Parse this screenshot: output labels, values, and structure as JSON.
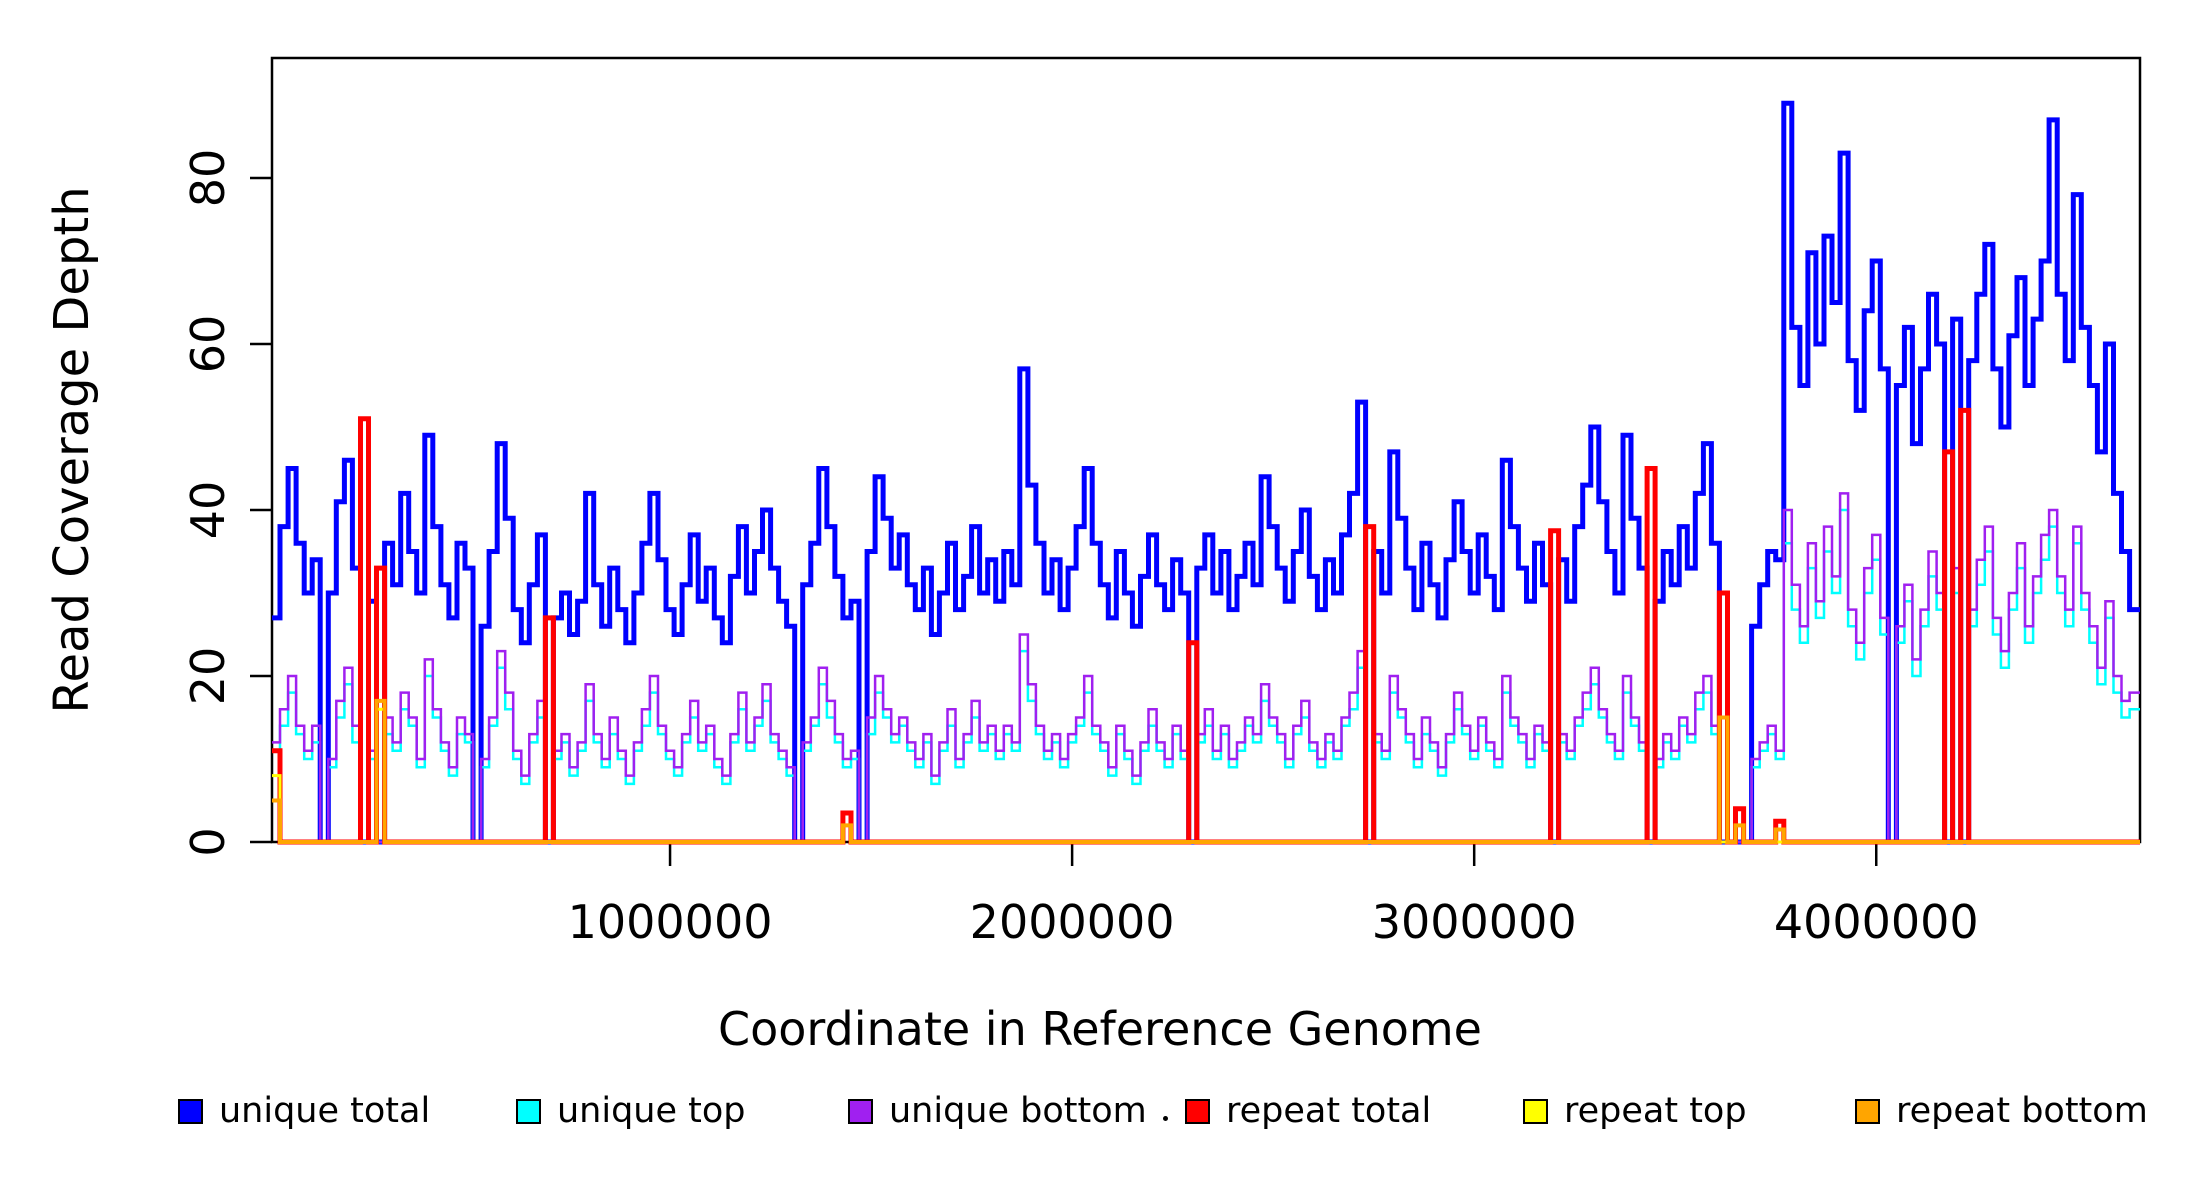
{
  "chart_data": {
    "type": "line",
    "subtype": "step-coverage",
    "title": "",
    "xlabel": "Coordinate in Reference Genome",
    "ylabel": "Read Coverage Depth",
    "xlim": [
      10000,
      4650000
    ],
    "ylim": [
      0,
      94
    ],
    "grid": false,
    "legend_position": "bottom",
    "axis_color": "#000000",
    "background": "#ffffff",
    "x_start": 10000,
    "bin_size": 20000,
    "x_ticks": [
      {
        "value": 1000000,
        "label": "1000000"
      },
      {
        "value": 2000000,
        "label": "2000000"
      },
      {
        "value": 3000000,
        "label": "3000000"
      },
      {
        "value": 4000000,
        "label": "4000000"
      }
    ],
    "y_ticks": [
      {
        "value": 0,
        "label": "0"
      },
      {
        "value": 20,
        "label": "20"
      },
      {
        "value": 40,
        "label": "40"
      },
      {
        "value": 60,
        "label": "60"
      },
      {
        "value": 80,
        "label": "80"
      }
    ],
    "series": [
      {
        "name": "unique total",
        "color": "#0000FF",
        "values": [
          27,
          38,
          45,
          36,
          30,
          34,
          0,
          30,
          41,
          46,
          33,
          0,
          29,
          0,
          36,
          31,
          42,
          35,
          30,
          49,
          38,
          31,
          27,
          36,
          33,
          0,
          26,
          35,
          48,
          39,
          28,
          24,
          31,
          37,
          0,
          27,
          30,
          25,
          29,
          42,
          31,
          26,
          33,
          28,
          24,
          30,
          36,
          42,
          34,
          28,
          25,
          31,
          37,
          29,
          33,
          27,
          24,
          32,
          38,
          30,
          35,
          40,
          33,
          29,
          26,
          0,
          31,
          36,
          45,
          38,
          32,
          27,
          29,
          0,
          35,
          44,
          39,
          33,
          37,
          31,
          28,
          33,
          25,
          30,
          36,
          28,
          32,
          38,
          30,
          34,
          29,
          35,
          31,
          57,
          43,
          36,
          30,
          34,
          28,
          33,
          38,
          45,
          36,
          31,
          27,
          35,
          30,
          26,
          32,
          37,
          31,
          28,
          34,
          30,
          0,
          33,
          37,
          30,
          35,
          28,
          32,
          36,
          31,
          44,
          38,
          33,
          29,
          35,
          40,
          32,
          28,
          34,
          30,
          37,
          42,
          53,
          0,
          35,
          30,
          47,
          39,
          33,
          28,
          36,
          31,
          27,
          34,
          41,
          35,
          30,
          37,
          32,
          28,
          46,
          38,
          33,
          29,
          36,
          31,
          0,
          34,
          29,
          38,
          43,
          50,
          41,
          35,
          30,
          49,
          39,
          33,
          0,
          29,
          35,
          31,
          38,
          33,
          42,
          48,
          36,
          0,
          0,
          0,
          0,
          26,
          31,
          35,
          34,
          89,
          62,
          55,
          71,
          60,
          73,
          65,
          83,
          58,
          52,
          64,
          70,
          57,
          0,
          55,
          62,
          48,
          57,
          66,
          60,
          0,
          63,
          0,
          58,
          66,
          72,
          57,
          50,
          61,
          68,
          55,
          63,
          70,
          87,
          66,
          58,
          78,
          62,
          55,
          47,
          60,
          42,
          35,
          28
        ]
      },
      {
        "name": "unique top",
        "color": "#00FFFF",
        "values": [
          11,
          14,
          18,
          13,
          10,
          12,
          0,
          9,
          15,
          19,
          12,
          0,
          10,
          0,
          13,
          11,
          16,
          14,
          9,
          20,
          15,
          11,
          8,
          13,
          12,
          0,
          9,
          14,
          21,
          16,
          10,
          7,
          12,
          15,
          0,
          10,
          12,
          8,
          11,
          17,
          12,
          9,
          13,
          10,
          7,
          11,
          14,
          18,
          13,
          10,
          8,
          12,
          15,
          11,
          13,
          9,
          7,
          12,
          16,
          11,
          14,
          17,
          12,
          10,
          8,
          0,
          11,
          14,
          19,
          15,
          12,
          9,
          10,
          0,
          13,
          18,
          15,
          12,
          14,
          11,
          9,
          12,
          7,
          11,
          14,
          9,
          12,
          15,
          11,
          13,
          10,
          13,
          11,
          23,
          17,
          13,
          10,
          12,
          9,
          12,
          14,
          18,
          13,
          11,
          8,
          13,
          10,
          7,
          11,
          14,
          11,
          9,
          13,
          10,
          0,
          12,
          14,
          10,
          13,
          9,
          11,
          14,
          12,
          17,
          14,
          12,
          9,
          13,
          15,
          11,
          9,
          12,
          10,
          14,
          16,
          21,
          0,
          12,
          10,
          18,
          15,
          12,
          9,
          13,
          11,
          8,
          12,
          16,
          13,
          10,
          14,
          11,
          9,
          18,
          14,
          12,
          9,
          13,
          11,
          0,
          12,
          10,
          14,
          16,
          19,
          15,
          12,
          10,
          18,
          14,
          11,
          0,
          9,
          12,
          10,
          14,
          12,
          16,
          18,
          13,
          0,
          0,
          0,
          0,
          9,
          11,
          13,
          10,
          36,
          28,
          24,
          33,
          27,
          35,
          30,
          40,
          26,
          22,
          30,
          34,
          25,
          0,
          24,
          29,
          20,
          26,
          32,
          28,
          0,
          30,
          0,
          26,
          31,
          35,
          25,
          21,
          28,
          33,
          24,
          30,
          34,
          38,
          30,
          26,
          36,
          28,
          24,
          19,
          27,
          18,
          15,
          16
        ]
      },
      {
        "name": "unique bottom",
        "color": "#A020F0",
        "values": [
          12,
          16,
          20,
          14,
          11,
          14,
          0,
          10,
          17,
          21,
          14,
          0,
          11,
          0,
          15,
          12,
          18,
          15,
          10,
          22,
          16,
          12,
          9,
          15,
          13,
          0,
          10,
          15,
          23,
          18,
          11,
          8,
          13,
          17,
          0,
          11,
          13,
          9,
          12,
          19,
          13,
          10,
          15,
          11,
          8,
          12,
          16,
          20,
          14,
          11,
          9,
          13,
          17,
          12,
          14,
          10,
          8,
          13,
          18,
          12,
          15,
          19,
          13,
          11,
          9,
          0,
          12,
          15,
          21,
          17,
          13,
          10,
          11,
          0,
          15,
          20,
          16,
          13,
          15,
          12,
          10,
          13,
          8,
          12,
          16,
          10,
          13,
          17,
          12,
          14,
          11,
          14,
          12,
          25,
          19,
          14,
          11,
          13,
          10,
          13,
          15,
          20,
          14,
          12,
          9,
          14,
          11,
          8,
          12,
          16,
          12,
          10,
          14,
          11,
          0,
          13,
          16,
          11,
          14,
          10,
          12,
          15,
          13,
          19,
          15,
          13,
          10,
          14,
          17,
          12,
          10,
          13,
          11,
          15,
          18,
          23,
          0,
          13,
          11,
          20,
          16,
          13,
          10,
          15,
          12,
          9,
          13,
          18,
          14,
          11,
          15,
          12,
          10,
          20,
          15,
          13,
          10,
          14,
          12,
          0,
          13,
          11,
          15,
          18,
          21,
          16,
          13,
          11,
          20,
          15,
          12,
          0,
          10,
          13,
          11,
          15,
          13,
          18,
          20,
          14,
          0,
          0,
          0,
          0,
          10,
          12,
          14,
          11,
          40,
          31,
          26,
          36,
          29,
          38,
          32,
          42,
          28,
          24,
          33,
          37,
          27,
          0,
          26,
          31,
          22,
          28,
          35,
          30,
          0,
          33,
          0,
          28,
          34,
          38,
          27,
          23,
          30,
          36,
          26,
          32,
          37,
          40,
          32,
          28,
          38,
          30,
          26,
          21,
          29,
          20,
          17,
          18
        ]
      },
      {
        "name": "repeat total",
        "color": "#FF0000",
        "baseline": 0,
        "spikes": {
          "0": 11,
          "11": 51,
          "13": 33,
          "34": 27,
          "71": 3.5,
          "114": 24,
          "136": 38,
          "159": 37.5,
          "171": 45,
          "180": 30,
          "182": 4,
          "187": 2.5,
          "208": 47,
          "210": 52
        }
      },
      {
        "name": "repeat top",
        "color": "#FFFF00",
        "baseline": 0,
        "spikes": {
          "0": 8,
          "13": 16,
          "71": 2,
          "182": 2
        }
      },
      {
        "name": "repeat bottom",
        "color": "#FFA500",
        "baseline": 0,
        "spikes": {
          "0": 5,
          "13": 17,
          "71": 2,
          "180": 15,
          "182": 2,
          "187": 1.5
        }
      }
    ],
    "legend": [
      {
        "label": "unique total",
        "color": "#0000FF"
      },
      {
        "label": "unique top",
        "color": "#00FFFF"
      },
      {
        "label": "unique bottom",
        "color": "#A020F0"
      },
      {
        "label": "repeat total",
        "color": "#FF0000"
      },
      {
        "label": "repeat top",
        "color": "#FFFF00"
      },
      {
        "label": "repeat bottom",
        "color": "#FFA500"
      }
    ]
  }
}
